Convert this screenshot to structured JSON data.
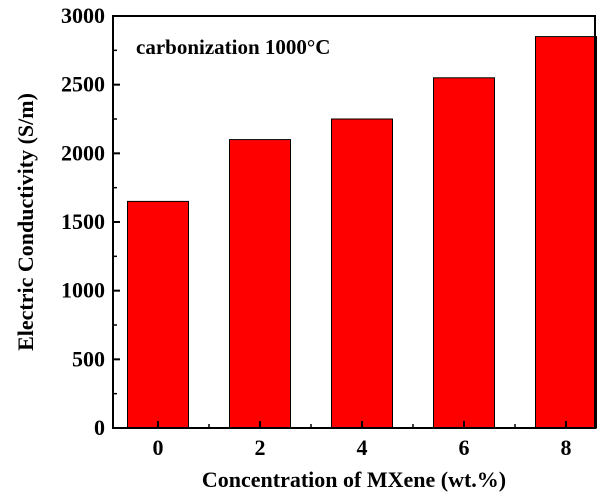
{
  "chart_data": {
    "type": "bar",
    "categories": [
      "0",
      "2",
      "4",
      "6",
      "8"
    ],
    "values": [
      1650,
      2100,
      2250,
      2550,
      2850
    ],
    "xlabel": "Concentration of MXene (wt.%)",
    "ylabel": "Electric Conductivity (S/m)",
    "ylim": [
      0,
      3000
    ],
    "yticks": [
      "0",
      "500",
      "1000",
      "1500",
      "2000",
      "2500",
      "3000"
    ],
    "annotation": "carbonization 1000°C",
    "bar_color": "#ff0000",
    "grid": false,
    "legend": "none"
  }
}
